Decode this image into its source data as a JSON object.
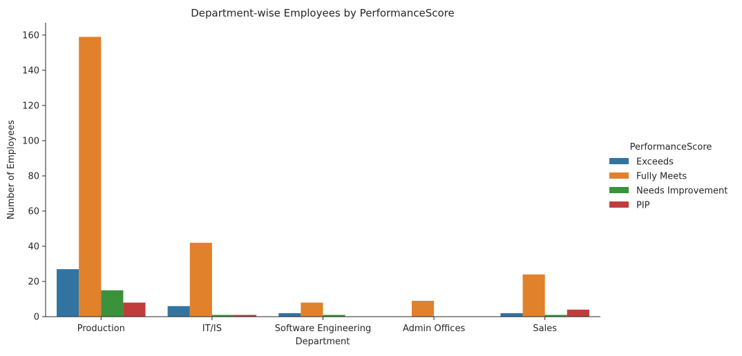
{
  "chart_data": {
    "type": "bar",
    "title": "Department-wise Employees by PerformanceScore",
    "xlabel": "Department",
    "ylabel": "Number of Employees",
    "categories": [
      "Production",
      "IT/IS",
      "Software Engineering",
      "Admin Offices",
      "Sales"
    ],
    "series": [
      {
        "name": "Exceeds",
        "color": "#3274a1",
        "values": [
          27,
          6,
          2,
          0,
          2
        ]
      },
      {
        "name": "Fully Meets",
        "color": "#e1812c",
        "values": [
          159,
          42,
          8,
          9,
          24
        ]
      },
      {
        "name": "Needs Improvement",
        "color": "#3a923a",
        "values": [
          15,
          1,
          1,
          0,
          1
        ]
      },
      {
        "name": "PIP",
        "color": "#c03d3e",
        "values": [
          8,
          1,
          0,
          0,
          4
        ]
      }
    ],
    "ylim": [
      0,
      167
    ],
    "yticks": [
      0,
      20,
      40,
      60,
      80,
      100,
      120,
      140,
      160
    ],
    "grid": false,
    "legend_title": "PerformanceScore",
    "legend_position": "right"
  }
}
